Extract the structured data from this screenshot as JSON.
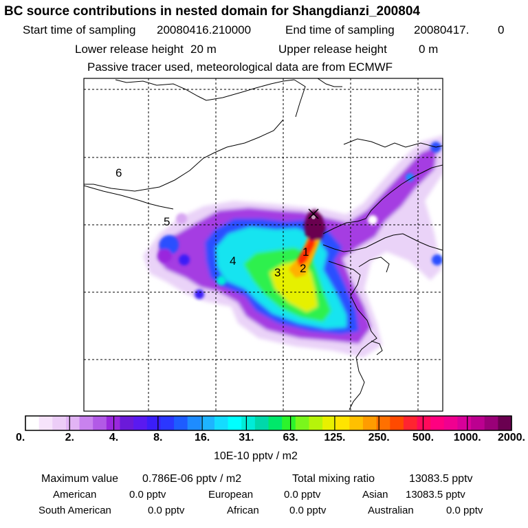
{
  "header": {
    "title": "BC  source contributions in nested domain for Shangdianzi_200804",
    "start_label": "Start time of sampling",
    "start_value": "20080416.210000",
    "end_label": "End time of sampling",
    "end_value": "20080417.",
    "end_extra": "0",
    "lower_label": "Lower release height",
    "lower_value": "20 m",
    "upper_label": "Upper release height",
    "upper_value": "0 m",
    "note": "Passive tracer used, meteorological data are from ECMWF"
  },
  "map": {
    "region_labels": [
      "1",
      "2",
      "3",
      "4",
      "5",
      "6"
    ],
    "grid": "dashed"
  },
  "colorbar": {
    "tick_labels": [
      "0.",
      "2.",
      "4.",
      "8.",
      "16.",
      "31.",
      "63.",
      "125.",
      "250.",
      "500.",
      "1000.",
      "2000."
    ],
    "unit": "10E-10 pptv / m2",
    "colors": [
      "#ffffff",
      "#f6e3fb",
      "#eccdf7",
      "#e2b4f5",
      "#c982ee",
      "#b25ae6",
      "#9a28dd",
      "#6b1ad9",
      "#5a1af0",
      "#3b1ef8",
      "#2b37ff",
      "#1e5cff",
      "#1e8cff",
      "#1eb4ff",
      "#14dcff",
      "#00ffff",
      "#00ecd8",
      "#00d8aa",
      "#00e86a",
      "#2cf42c",
      "#7af61c",
      "#b6f40a",
      "#e8f000",
      "#ffe400",
      "#ffc000",
      "#ff9c00",
      "#ff7000",
      "#ff4a00",
      "#ff2430",
      "#ff0a5a",
      "#ff0080",
      "#f00090",
      "#d8009a",
      "#bc0090",
      "#9a0078",
      "#6a0050"
    ]
  },
  "footer": {
    "max_label": "Maximum value",
    "max_value": "0.786E-06 pptv / m2",
    "total_label": "Total mixing ratio",
    "total_value": "13083.5 pptv",
    "american_label": "American",
    "american_value": "0.0 pptv",
    "european_label": "European",
    "european_value": "0.0 pptv",
    "asian_label": "Asian",
    "asian_value": "13083.5 pptv",
    "south_american_label": "South American",
    "south_american_value": "0.0 pptv",
    "african_label": "African",
    "african_value": "0.0 pptv",
    "australian_label": "Australian",
    "australian_value": "0.0 pptv"
  }
}
